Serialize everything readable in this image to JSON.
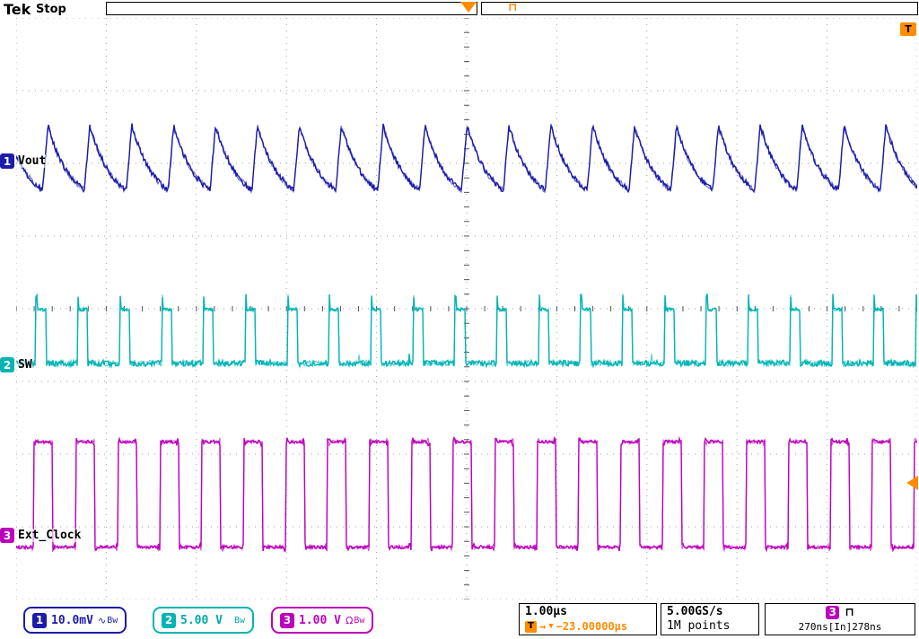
{
  "header": {
    "logo": "Tek",
    "acq_state": "Stop",
    "trigger_type_glyph": "⊓"
  },
  "graticule": {
    "channels": [
      {
        "num": "1",
        "name": "Vout"
      },
      {
        "num": "2",
        "name": "SW"
      },
      {
        "num": "3",
        "name": "Ext_Clock"
      }
    ],
    "trigger_level_label": "T"
  },
  "status_bar": {
    "ch1": {
      "num": "1",
      "scale": "10.0mV",
      "coupling_glyph": "∿",
      "bw_label": "Bw"
    },
    "ch2": {
      "num": "2",
      "scale": "5.00 V",
      "bw_label": "Bw"
    },
    "ch3": {
      "num": "3",
      "scale": "1.00 V",
      "impedance_glyph": "Ω",
      "bw_label": "Bw"
    },
    "timebase": "1.00µs",
    "trigger_label": "T",
    "trigger_arrow": "→",
    "trigger_marker": "▼",
    "trigger_delay": "−23.00000µs",
    "sample_rate": "5.00GS/s",
    "record_length": "1M points",
    "trigger_source": "3",
    "trigger_type_glyph": "⊓",
    "trigger_width_readout": "270ns[In]278ns"
  },
  "chart_data": {
    "type": "line",
    "title": "Oscilloscope capture: Vout ripple, SW node and Ext_Clock",
    "h_divisions": 10,
    "v_divisions": 8,
    "timebase_us_per_div": 1.0,
    "trigger_delay_us": -23.0,
    "sample_rate": "5.00GS/s",
    "record_length": "1M points",
    "switching_frequency_MHz": 2.15,
    "grid": "dotted, center crosshair with minor ticks",
    "channels": [
      {
        "id": 1,
        "label": "Vout",
        "vertical_scale": "10.0mV/div",
        "color": "#1c1ca8",
        "shape": "ripple",
        "period_us": 0.465,
        "rise_frac": 0.13,
        "peak_div": 1.48,
        "trough_div": 2.37,
        "phase": 0.371
      },
      {
        "id": 2,
        "label": "SW",
        "vertical_scale": "5.00 V/div",
        "color": "#00b4b4",
        "shape": "pulse",
        "period_us": 0.465,
        "duty": 0.24,
        "base_div": 4.75,
        "high_div": 4.01,
        "spike_div": 3.82,
        "phase": 0.529
      },
      {
        "id": 3,
        "label": "Ext_Clock",
        "vertical_scale": "1.00 V/div",
        "color": "#bc00bc",
        "shape": "square",
        "period_us": 0.465,
        "duty": 0.45,
        "high_div": 5.83,
        "low_div": 7.28,
        "phase": 0.572
      }
    ]
  }
}
